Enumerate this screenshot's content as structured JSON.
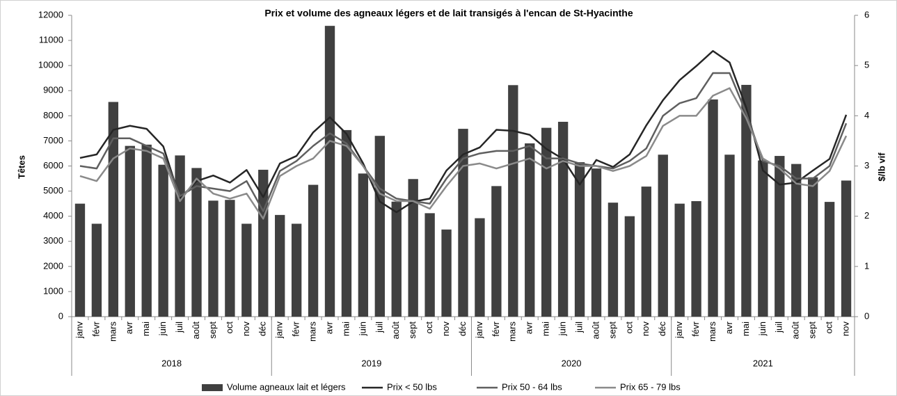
{
  "chart_data": {
    "type": "bar_line",
    "title": "Prix et volume des agneaux légers et de lait transigés à l'encan de St-Hyacinthe",
    "y_label": "Têtes",
    "y2_label": "$/lb vif",
    "categories": [
      "janv",
      "févr",
      "mars",
      "avr",
      "mai",
      "juin",
      "juil",
      "août",
      "sept",
      "oct",
      "nov",
      "déc",
      "janv",
      "févr",
      "mars",
      "avr",
      "mai",
      "juin",
      "juil",
      "août",
      "sept",
      "oct",
      "nov",
      "déc",
      "janv",
      "févr",
      "mars",
      "avr",
      "mai",
      "juin",
      "juil",
      "août",
      "sept",
      "oct",
      "nov",
      "déc",
      "janv",
      "févr",
      "mars",
      "avr",
      "mai",
      "juin",
      "juil",
      "août",
      "sept",
      "oct",
      "nov"
    ],
    "x_groups": [
      "2018",
      "2019",
      "2020",
      "2021"
    ],
    "ylim": [
      0,
      12000
    ],
    "yticks": [
      0,
      1000,
      2000,
      3000,
      4000,
      5000,
      6000,
      7000,
      8000,
      9000,
      10000,
      11000,
      12000
    ],
    "y2lim": [
      0,
      6
    ],
    "y2ticks": [
      0,
      1,
      2,
      3,
      4,
      5,
      6
    ],
    "legend": "bottom",
    "series": [
      {
        "name": "Volume agneaux lait et légers",
        "type": "bar",
        "color": "#404040",
        "values": [
          4500,
          3700,
          8550,
          6800,
          6850,
          6050,
          6420,
          5920,
          4620,
          4650,
          3700,
          5850,
          4050,
          3700,
          5250,
          11580,
          7430,
          5700,
          7200,
          4580,
          5480,
          4120,
          3470,
          7480,
          3920,
          5200,
          9220,
          6900,
          7520,
          7760,
          6150,
          5900,
          4540,
          4000,
          5180,
          6450,
          4500,
          4600,
          8650,
          6450,
          9230,
          6220,
          6400,
          6080,
          5550,
          4570,
          5420
        ]
      },
      {
        "name": "Prix < 50 lbs",
        "type": "line",
        "axis": "y2",
        "color": "#262626",
        "values": [
          3.16,
          3.23,
          3.72,
          3.8,
          3.74,
          3.39,
          2.35,
          2.7,
          2.81,
          2.67,
          2.92,
          2.38,
          3.05,
          3.2,
          3.67,
          3.97,
          3.64,
          3.05,
          2.29,
          2.08,
          2.29,
          2.35,
          2.91,
          3.23,
          3.37,
          3.72,
          3.7,
          3.62,
          3.34,
          3.14,
          2.63,
          3.12,
          2.98,
          3.23,
          3.81,
          4.31,
          4.71,
          4.99,
          5.29,
          5.06,
          4.16,
          2.91,
          2.63,
          2.67,
          2.91,
          3.14,
          4.02
        ]
      },
      {
        "name": "Prix 50 - 64 lbs",
        "type": "line",
        "axis": "y2",
        "color": "#5f5f5f",
        "values": [
          3.0,
          2.95,
          3.55,
          3.55,
          3.4,
          3.25,
          2.4,
          2.6,
          2.55,
          2.5,
          2.7,
          2.1,
          2.9,
          3.1,
          3.4,
          3.65,
          3.45,
          3.0,
          2.55,
          2.35,
          2.3,
          2.25,
          2.75,
          3.15,
          3.25,
          3.3,
          3.3,
          3.4,
          3.15,
          3.15,
          3.05,
          3.0,
          2.95,
          3.1,
          3.35,
          4.0,
          4.25,
          4.35,
          4.85,
          4.85,
          4.05,
          3.1,
          3.0,
          2.75,
          2.75,
          3.0,
          3.85
        ]
      },
      {
        "name": "Prix 65 - 79 lbs",
        "type": "line",
        "axis": "y2",
        "color": "#8a8a8a",
        "values": [
          2.8,
          2.7,
          3.15,
          3.35,
          3.3,
          3.15,
          2.3,
          2.75,
          2.45,
          2.35,
          2.45,
          1.95,
          2.8,
          3.0,
          3.15,
          3.5,
          3.4,
          3.0,
          2.45,
          2.3,
          2.3,
          2.15,
          2.6,
          3.0,
          3.05,
          2.95,
          3.05,
          3.15,
          2.95,
          3.1,
          3.0,
          3.0,
          2.9,
          3.0,
          3.2,
          3.8,
          4.0,
          4.0,
          4.4,
          4.55,
          3.95,
          3.15,
          2.95,
          2.65,
          2.6,
          2.9,
          3.6
        ]
      }
    ]
  }
}
